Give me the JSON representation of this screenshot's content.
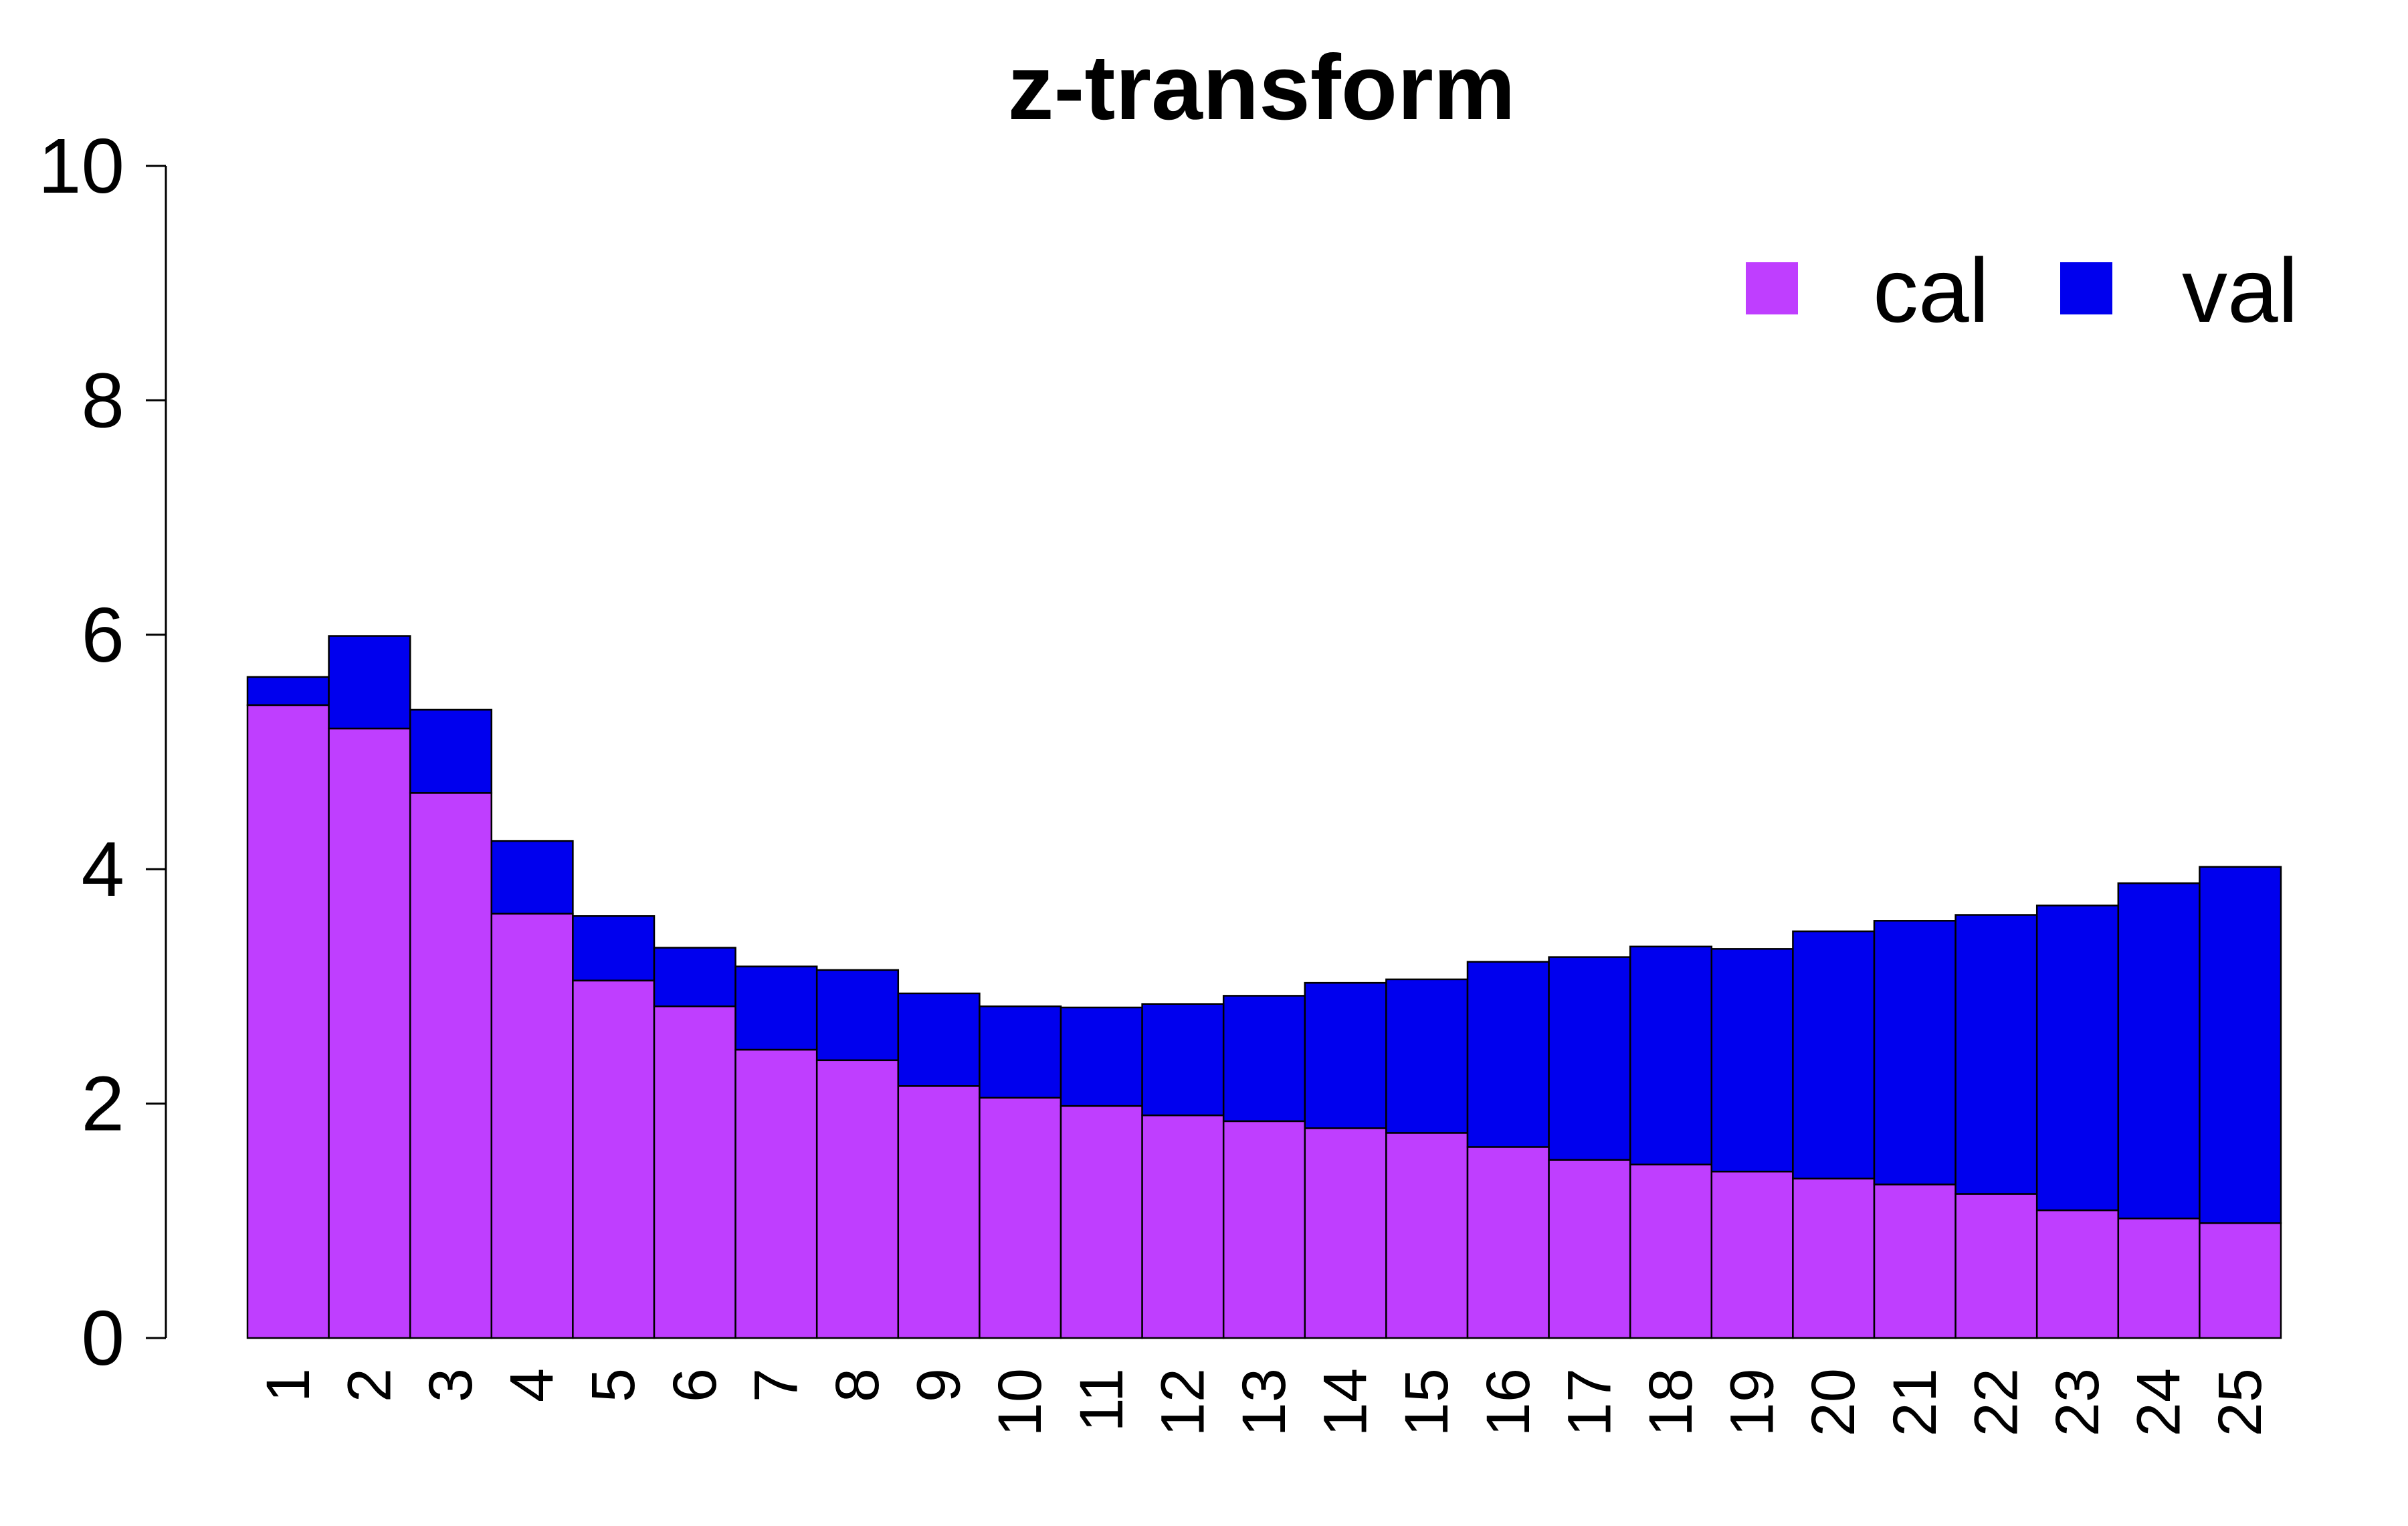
{
  "chart_data": {
    "type": "bar",
    "stacked": true,
    "title": "z-transform",
    "xlabel": "",
    "ylabel": "",
    "ylim": [
      0,
      10
    ],
    "yticks": [
      "0",
      "2",
      "4",
      "6",
      "8",
      "10"
    ],
    "categories": [
      "1",
      "2",
      "3",
      "4",
      "5",
      "6",
      "7",
      "8",
      "9",
      "10",
      "11",
      "12",
      "13",
      "14",
      "15",
      "16",
      "17",
      "18",
      "19",
      "20",
      "21",
      "22",
      "23",
      "24",
      "25"
    ],
    "series": [
      {
        "name": "cal",
        "color": "#BF3EFF",
        "values": [
          5.4,
          5.2,
          4.65,
          3.62,
          3.05,
          2.83,
          2.46,
          2.37,
          2.15,
          2.05,
          1.98,
          1.9,
          1.85,
          1.79,
          1.75,
          1.63,
          1.52,
          1.48,
          1.42,
          1.36,
          1.31,
          1.23,
          1.09,
          1.02,
          0.98
        ]
      },
      {
        "name": "val",
        "color": "#0000EE",
        "values": [
          0.24,
          0.79,
          0.71,
          0.62,
          0.55,
          0.5,
          0.71,
          0.77,
          0.79,
          0.78,
          0.84,
          0.95,
          1.07,
          1.24,
          1.31,
          1.58,
          1.73,
          1.86,
          1.9,
          2.11,
          2.25,
          2.38,
          2.6,
          2.86,
          3.04
        ]
      }
    ],
    "legend": {
      "position": "top-right",
      "entries": [
        "cal",
        "val"
      ]
    },
    "grid": false,
    "bar_outline_color": "#000000",
    "axis_color": "#000000"
  }
}
